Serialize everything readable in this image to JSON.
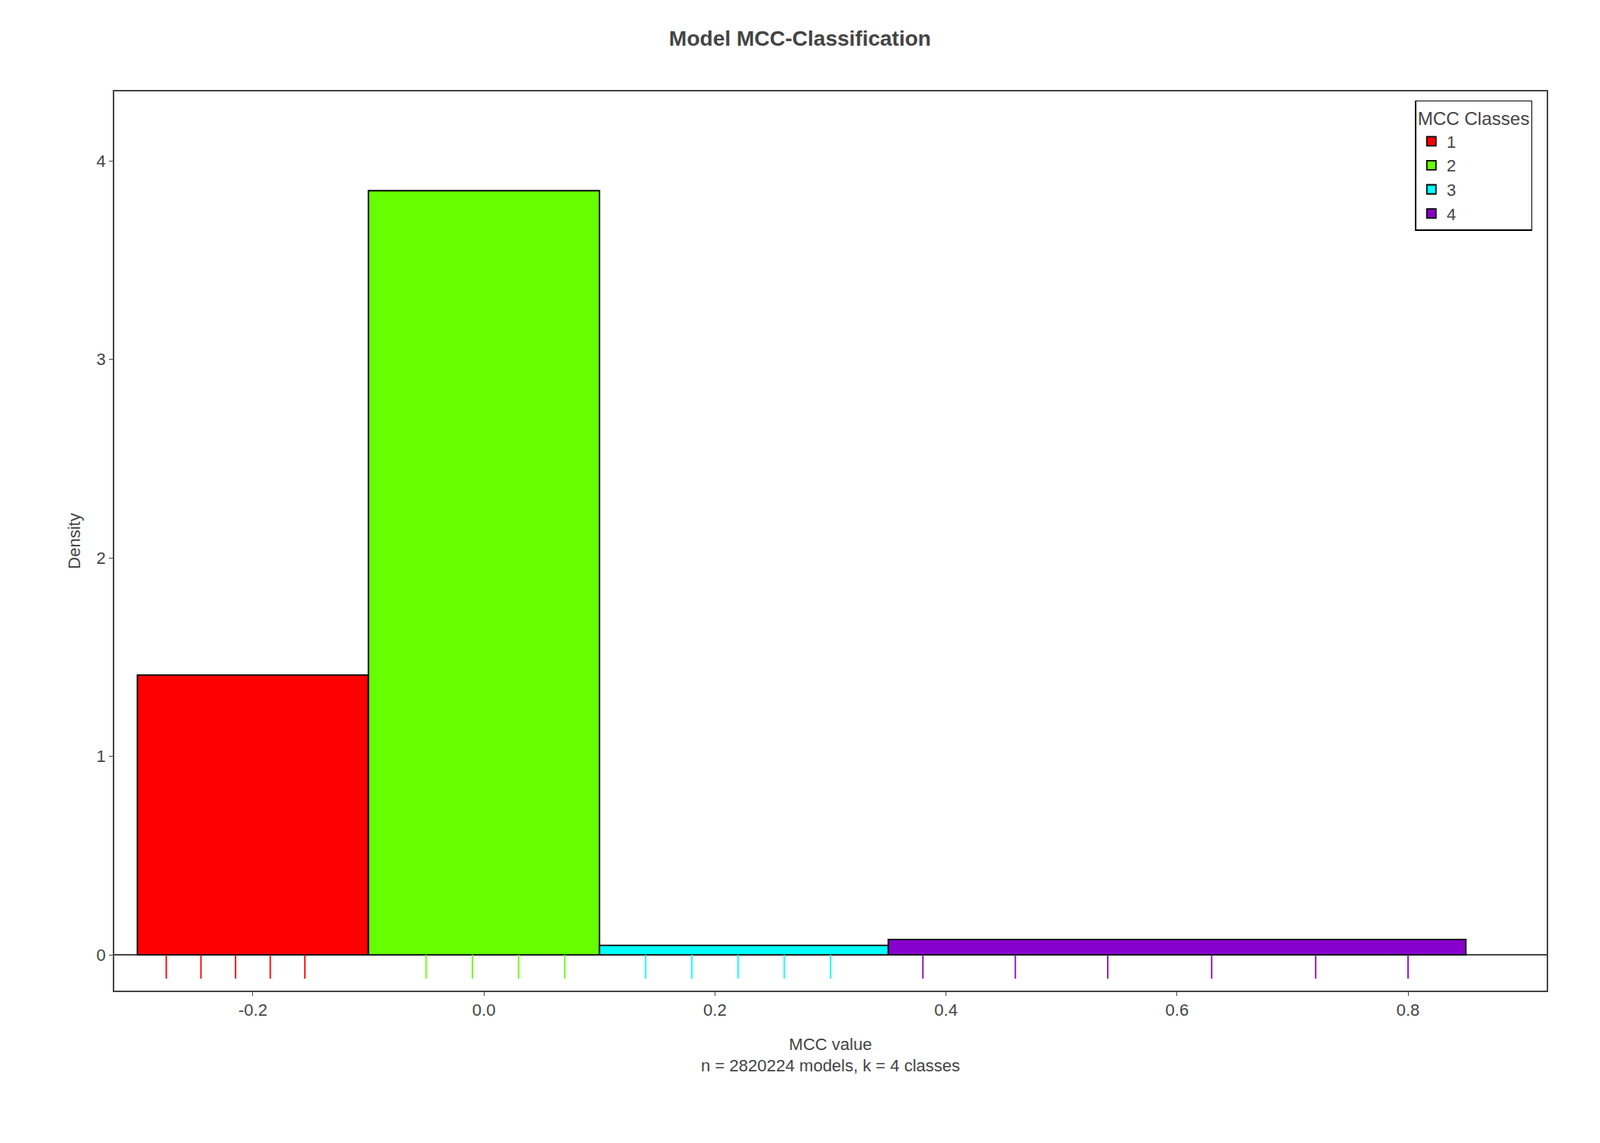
{
  "chart_data": {
    "type": "histogram",
    "title": "Model MCC-Classification",
    "xlabel": "MCC value",
    "annotations": [
      "n = 2820224 models, k = 4 classes"
    ],
    "ylabel": "Density",
    "bins": [
      -0.3,
      -0.1,
      0.1,
      0.35,
      0.85
    ],
    "values": [
      1.41,
      3.85,
      0.048,
      0.078
    ],
    "series": [
      {
        "name": "1",
        "color": "#ff0000",
        "rug": [
          -0.275,
          -0.245,
          -0.215,
          -0.185,
          -0.155
        ]
      },
      {
        "name": "2",
        "color": "#66ff00",
        "rug": [
          -0.05,
          -0.01,
          0.03,
          0.07
        ]
      },
      {
        "name": "3",
        "color": "#00ffff",
        "rug": [
          0.14,
          0.18,
          0.22,
          0.26,
          0.3
        ]
      },
      {
        "name": "4",
        "color": "#8800cc",
        "rug": [
          0.38,
          0.46,
          0.54,
          0.63,
          0.72,
          0.8
        ]
      }
    ],
    "legend_title": "MCC Classes",
    "legend": "upper right",
    "xlim": [
      -0.32,
      0.92
    ],
    "ylim": [
      -0.18,
      4.35
    ],
    "xticks": [
      -0.2,
      {
        "value": 0.0,
        "label": "0.0"
      },
      0.2,
      0.4,
      0.6,
      0.8
    ],
    "yticks": [
      0,
      1,
      2,
      3,
      4
    ],
    "grid": false
  }
}
